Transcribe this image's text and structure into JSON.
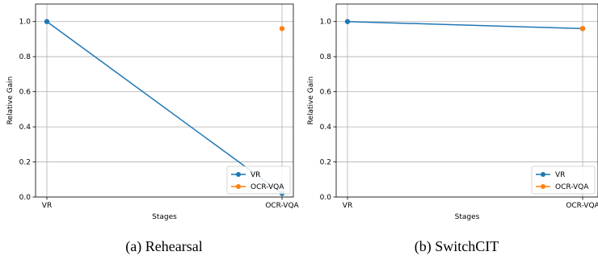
{
  "chart_data": [
    {
      "type": "line",
      "caption": "(a) Rehearsal",
      "xlabel": "Stages",
      "ylabel": "Relative Gain",
      "categories": [
        "VR",
        "OCR-VQA"
      ],
      "ylim": [
        0,
        1.1
      ],
      "yticks": [
        "0.0",
        "0.2",
        "0.4",
        "0.6",
        "0.8",
        "1.0"
      ],
      "grid": true,
      "legend_position": "lower-right",
      "series": [
        {
          "name": "VR",
          "color": "#1f77b4",
          "values": [
            1.0,
            0.02
          ]
        },
        {
          "name": "OCR-VQA",
          "color": "#ff7f0e",
          "values": [
            null,
            0.96
          ]
        }
      ]
    },
    {
      "type": "line",
      "caption": "(b) SwitchCIT",
      "xlabel": "Stages",
      "ylabel": "Relative Gain",
      "categories": [
        "VR",
        "OCR-VQA"
      ],
      "ylim": [
        0,
        1.1
      ],
      "yticks": [
        "0.0",
        "0.2",
        "0.4",
        "0.6",
        "0.8",
        "1.0"
      ],
      "grid": true,
      "legend_position": "lower-right",
      "series": [
        {
          "name": "VR",
          "color": "#1f77b4",
          "values": [
            1.0,
            0.96
          ]
        },
        {
          "name": "OCR-VQA",
          "color": "#ff7f0e",
          "values": [
            null,
            0.96
          ]
        }
      ]
    }
  ]
}
